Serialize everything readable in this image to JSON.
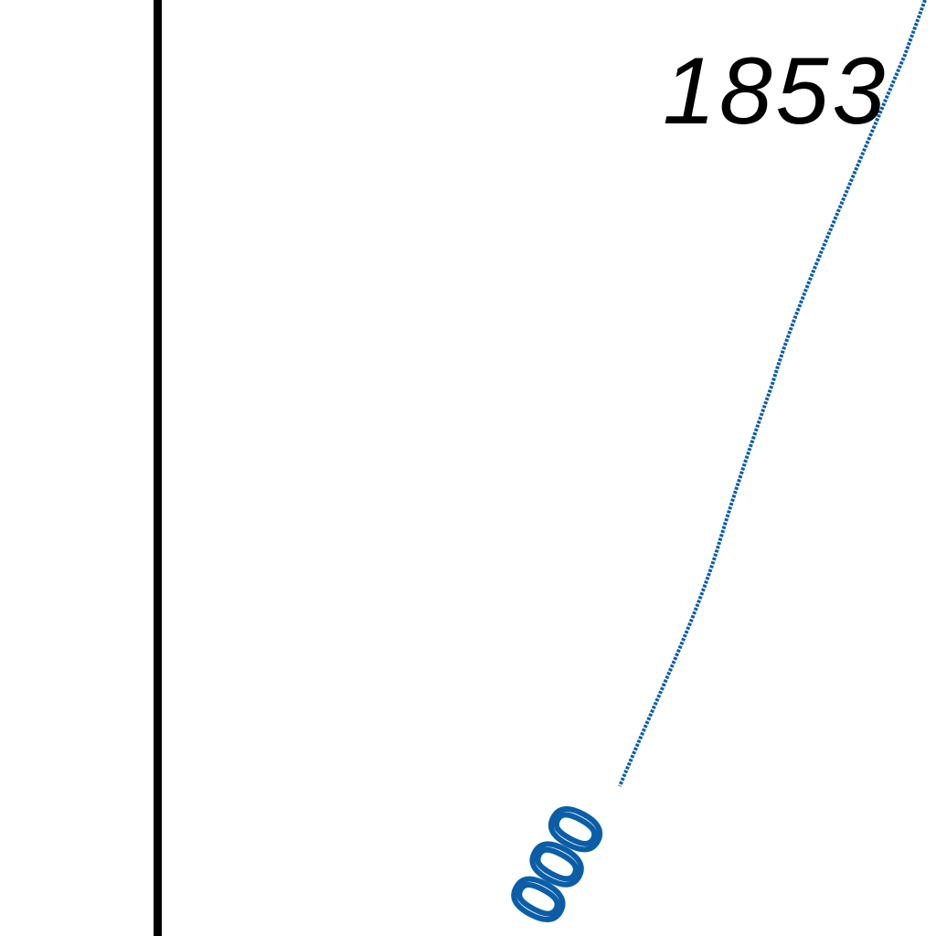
{
  "map": {
    "year_label": "1853",
    "contour_label": "000",
    "colors": {
      "background": "#ffffff",
      "border_line": "#000000",
      "contour_line": "#0a5ea8",
      "year_text": "#000000",
      "contour_text": "#0a5ea8"
    }
  }
}
